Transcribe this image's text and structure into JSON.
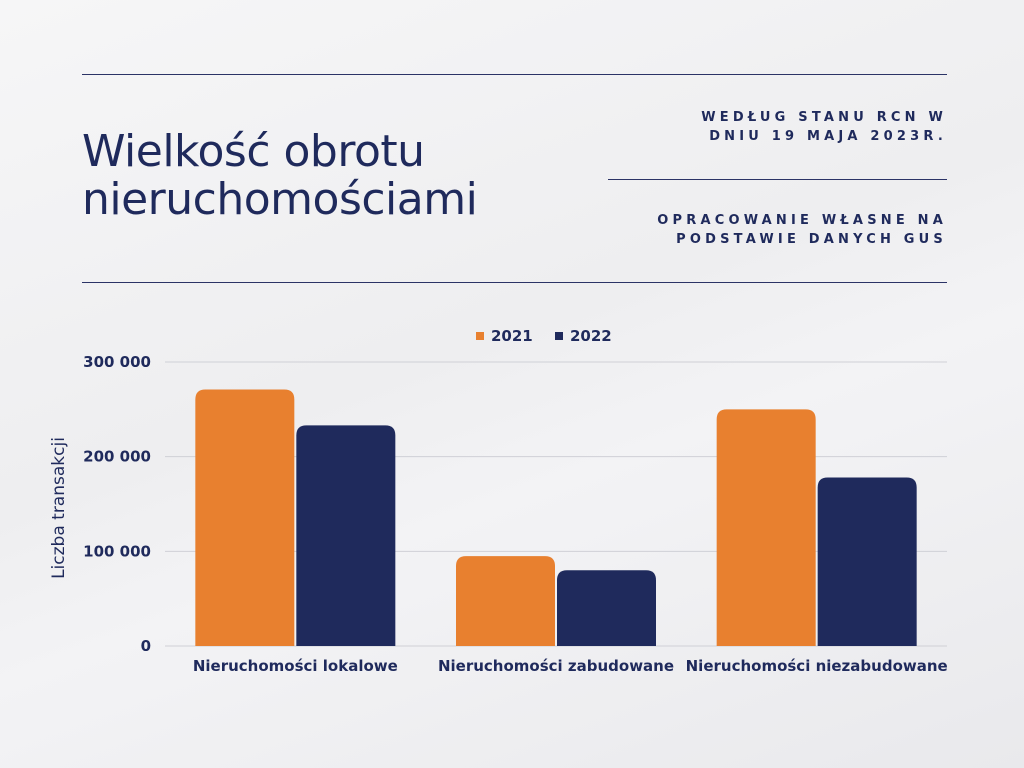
{
  "header": {
    "title_line1": "Wielkość obrotu",
    "title_line2": "nieruchomościami",
    "note1_line1": "WEDŁUG STANU RCN W",
    "note1_line2": "DNIU 19 MAJA 2023R.",
    "note2_line1": "OPRACOWANIE WŁASNE NA",
    "note2_line2": "PODSTAWIE DANYCH GUS"
  },
  "chart_data": {
    "type": "bar",
    "categories": [
      "Nieruchomości lokalowe",
      "Nieruchomości zabudowane",
      "Nieruchomości niezabudowane"
    ],
    "series": [
      {
        "name": "2021",
        "values": [
          271000,
          95000,
          250000
        ]
      },
      {
        "name": "2022",
        "values": [
          233000,
          80000,
          178000
        ]
      }
    ],
    "title": "",
    "xlabel": "",
    "ylabel": "Liczba transakcji",
    "ylim": [
      0,
      300000
    ],
    "yticks": [
      0,
      100000,
      200000,
      300000
    ],
    "ytick_labels": [
      "0",
      "100 000",
      "200 000",
      "300 000"
    ],
    "colors": [
      "#e8802f",
      "#1f2a5c"
    ],
    "grid": true,
    "legend_position": "top-center"
  }
}
